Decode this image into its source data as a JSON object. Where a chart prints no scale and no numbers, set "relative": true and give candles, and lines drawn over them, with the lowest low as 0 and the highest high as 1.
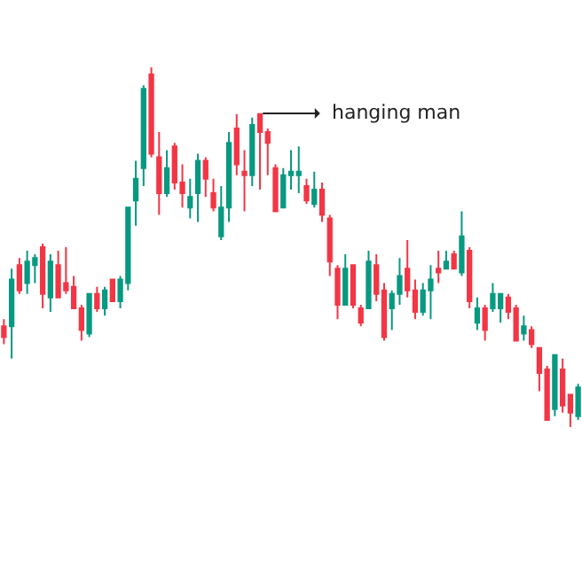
{
  "chart_data": {
    "type": "candlestick",
    "relative": true,
    "categories": [
      null,
      null,
      null,
      null,
      null,
      null,
      null,
      null,
      null,
      null,
      null,
      null,
      null,
      null,
      null,
      null,
      null,
      null,
      null,
      null,
      null,
      null,
      null,
      null,
      null,
      null,
      null,
      null,
      null,
      null,
      null,
      null,
      null,
      null,
      null,
      null,
      null,
      null,
      null,
      null,
      null,
      null,
      null,
      null,
      null,
      null,
      null,
      null,
      null,
      null,
      null,
      null,
      null,
      null,
      null,
      null,
      null,
      null,
      null,
      null,
      null,
      null,
      null,
      null,
      null,
      null,
      null,
      null,
      null,
      null,
      null,
      null,
      null,
      null,
      null
    ],
    "ohlc": [
      [
        0.28,
        0.3,
        0.23,
        0.25
      ],
      [
        0.28,
        0.44,
        0.19,
        0.41
      ],
      [
        0.45,
        0.47,
        0.37,
        0.38
      ],
      [
        0.4,
        0.49,
        0.37,
        0.46
      ],
      [
        0.45,
        0.48,
        0.4,
        0.47
      ],
      [
        0.5,
        0.51,
        0.33,
        0.37
      ],
      [
        0.36,
        0.48,
        0.32,
        0.46
      ],
      [
        0.45,
        0.49,
        0.36,
        0.36
      ],
      [
        0.4,
        0.5,
        0.37,
        0.38
      ],
      [
        0.39,
        0.42,
        0.33,
        0.33
      ],
      [
        0.33,
        0.34,
        0.24,
        0.27
      ],
      [
        0.26,
        0.37,
        0.25,
        0.37
      ],
      [
        0.37,
        0.39,
        0.32,
        0.33
      ],
      [
        0.33,
        0.39,
        0.31,
        0.38
      ],
      [
        0.41,
        0.41,
        0.35,
        0.35
      ],
      [
        0.35,
        0.42,
        0.33,
        0.41
      ],
      [
        0.4,
        0.61,
        0.38,
        0.61
      ],
      [
        0.63,
        0.74,
        0.56,
        0.69
      ],
      [
        0.72,
        0.95,
        0.67,
        0.94
      ],
      [
        0.98,
        1,
        0.75,
        0.76
      ],
      [
        0.75,
        0.82,
        0.59,
        0.65
      ],
      [
        0.65,
        0.77,
        0.64,
        0.72
      ],
      [
        0.78,
        0.79,
        0.66,
        0.68
      ],
      [
        0.68,
        0.73,
        0.61,
        0.65
      ],
      [
        0.61,
        0.69,
        0.58,
        0.64
      ],
      [
        0.65,
        0.76,
        0.57,
        0.74
      ],
      [
        0.74,
        0.75,
        0.64,
        0.69
      ],
      [
        0.65,
        0.69,
        0.6,
        0.61
      ],
      [
        0.53,
        0.67,
        0.52,
        0.61
      ],
      [
        0.61,
        0.82,
        0.57,
        0.79
      ],
      [
        0.83,
        0.87,
        0.7,
        0.73
      ],
      [
        0.71,
        0.77,
        0.6,
        0.7
      ],
      [
        0.7,
        0.86,
        0.67,
        0.84
      ],
      [
        0.87,
        0.87,
        0.66,
        0.82
      ],
      [
        0.82,
        0.83,
        0.7,
        0.79
      ],
      [
        0.72,
        0.73,
        0.6,
        0.6
      ],
      [
        0.61,
        0.72,
        0.61,
        0.7
      ],
      [
        0.7,
        0.77,
        0.66,
        0.71
      ],
      [
        0.7,
        0.78,
        0.65,
        0.71
      ],
      [
        0.67,
        0.69,
        0.62,
        0.63
      ],
      [
        0.62,
        0.71,
        0.61,
        0.66
      ],
      [
        0.66,
        0.68,
        0.57,
        0.59
      ],
      [
        0.58,
        0.59,
        0.42,
        0.46
      ],
      [
        0.44,
        0.45,
        0.3,
        0.34
      ],
      [
        0.34,
        0.48,
        0.34,
        0.44
      ],
      [
        0.45,
        0.45,
        0.33,
        0.34
      ],
      [
        0.33,
        0.34,
        0.28,
        0.29
      ],
      [
        0.33,
        0.49,
        0.33,
        0.46
      ],
      [
        0.45,
        0.48,
        0.35,
        0.37
      ],
      [
        0.38,
        0.4,
        0.24,
        0.25
      ],
      [
        0.33,
        0.38,
        0.27,
        0.37
      ],
      [
        0.37,
        0.47,
        0.34,
        0.42
      ],
      [
        0.44,
        0.52,
        0.36,
        0.38
      ],
      [
        0.38,
        0.41,
        0.3,
        0.32
      ],
      [
        0.32,
        0.4,
        0.31,
        0.38
      ],
      [
        0.38,
        0.45,
        0.3,
        0.41
      ],
      [
        0.44,
        0.49,
        0.4,
        0.43
      ],
      [
        0.44,
        0.49,
        0.44,
        0.46
      ],
      [
        0.48,
        0.49,
        0.44,
        0.44
      ],
      [
        0.43,
        0.6,
        0.42,
        0.53
      ],
      [
        0.49,
        0.5,
        0.33,
        0.35
      ],
      [
        0.29,
        0.36,
        0.27,
        0.33
      ],
      [
        0.33,
        0.34,
        0.24,
        0.27
      ],
      [
        0.33,
        0.4,
        0.32,
        0.37
      ],
      [
        0.33,
        0.37,
        0.29,
        0.37
      ],
      [
        0.36,
        0.37,
        0.3,
        0.32
      ],
      [
        0.33,
        0.34,
        0.24,
        0.24
      ],
      [
        0.26,
        0.31,
        0.24,
        0.28
      ],
      [
        0.27,
        0.28,
        0.22,
        0.23
      ],
      [
        0.22,
        0.22,
        0.1,
        0.15
      ],
      [
        0.16,
        0.17,
        0.02,
        0.02
      ],
      [
        0.05,
        0.2,
        0.03,
        0.2
      ],
      [
        0.16,
        0.19,
        0.04,
        0.06
      ],
      [
        0.09,
        0.09,
        0,
        0.04
      ],
      [
        0.03,
        0.12,
        0.02,
        0.11
      ]
    ],
    "colors": [
      "#f23645",
      "#089981",
      "#f23645",
      "#089981",
      "#089981",
      "#f23645",
      "#089981",
      "#f23645",
      "#f23645",
      "#f23645",
      "#f23645",
      "#089981",
      "#f23645",
      "#089981",
      "#f23645",
      "#089981",
      "#089981",
      "#089981",
      "#089981",
      "#f23645",
      "#f23645",
      "#089981",
      "#f23645",
      "#f23645",
      "#089981",
      "#089981",
      "#f23645",
      "#f23645",
      "#089981",
      "#089981",
      "#f23645",
      "#f23645",
      "#089981",
      "#f23645",
      "#f23645",
      "#f23645",
      "#089981",
      "#089981",
      "#089981",
      "#f23645",
      "#089981",
      "#f23645",
      "#f23645",
      "#f23645",
      "#089981",
      "#f23645",
      "#f23645",
      "#089981",
      "#f23645",
      "#f23645",
      "#089981",
      "#089981",
      "#f23645",
      "#f23645",
      "#089981",
      "#089981",
      "#f23645",
      "#089981",
      "#f23645",
      "#089981",
      "#f23645",
      "#089981",
      "#f23645",
      "#089981",
      "#089981",
      "#f23645",
      "#f23645",
      "#089981",
      "#f23645",
      "#f23645",
      "#f23645",
      "#089981",
      "#f23645",
      "#f23645",
      "#089981"
    ],
    "annotations": [
      "hanging man"
    ]
  }
}
